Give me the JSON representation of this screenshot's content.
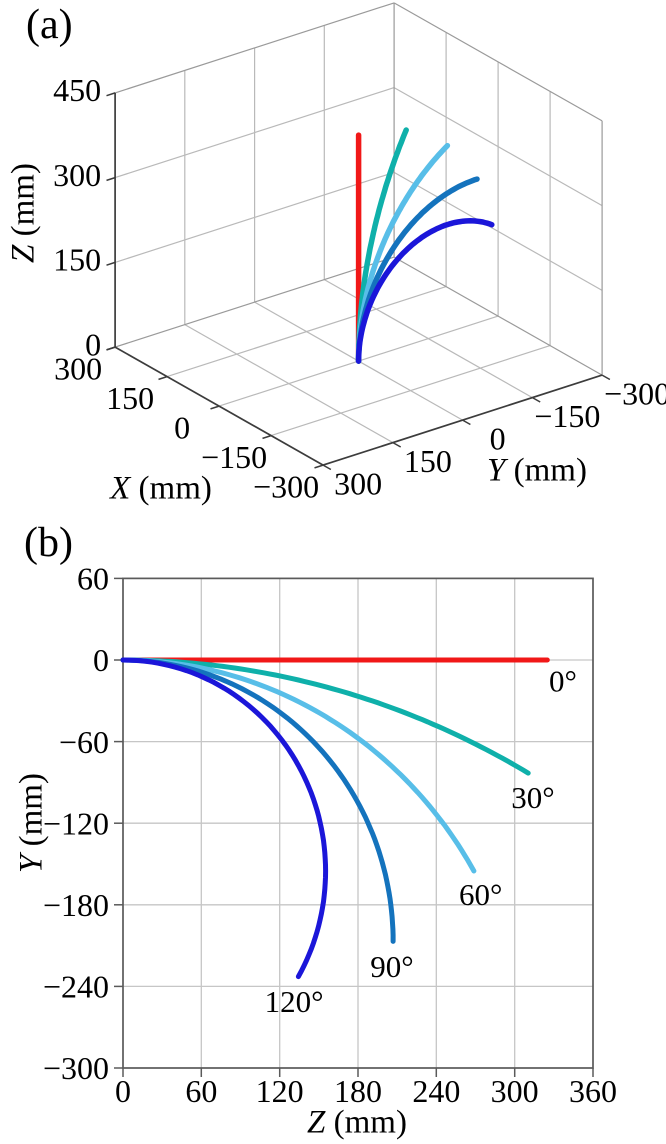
{
  "panel_a": {
    "label": "(a)"
  },
  "panel_b": {
    "label": "(b)"
  },
  "colors": {
    "grid3d": "#b9b9b9",
    "box3d": "#9a9a9a",
    "axis3d": "#3c3c3c",
    "grid2d": "#c6c6c6",
    "frame2d": "#5a5a5a",
    "text": "#000000"
  },
  "chart_data": [
    {
      "type": "line",
      "projection": "3d",
      "panel": "(a)",
      "title": "",
      "xlabel": {
        "var": "X",
        "unit": " (mm)"
      },
      "ylabel": {
        "var": "Y",
        "unit": " (mm)"
      },
      "zlabel": {
        "var": "Z",
        "unit": " (mm)"
      },
      "xlim": [
        300,
        -300
      ],
      "ylim": [
        300,
        -300
      ],
      "zlim": [
        0,
        450
      ],
      "xticks": [
        300,
        150,
        0,
        -150,
        -300
      ],
      "yticks": [
        300,
        150,
        0,
        -150,
        -300
      ],
      "zticks": [
        0,
        150,
        300,
        450
      ],
      "grid": true,
      "arc_length_mm": 400,
      "bend_plane": "curves lie in X=0 plane, bending from +Z toward -Y",
      "series": [
        {
          "name": "0°",
          "bend_deg": 0,
          "color": "#f11818",
          "end_point_xyz": [
            0,
            0,
            400
          ]
        },
        {
          "name": "30°",
          "bend_deg": 30,
          "color": "#0fb0aa",
          "end_point_xyz": [
            0,
            -102,
            382
          ]
        },
        {
          "name": "60°",
          "bend_deg": 60,
          "color": "#58bee8",
          "end_point_xyz": [
            0,
            -191,
            331
          ]
        },
        {
          "name": "90°",
          "bend_deg": 90,
          "color": "#1473bd",
          "end_point_xyz": [
            0,
            -255,
            255
          ]
        },
        {
          "name": "120°",
          "bend_deg": 120,
          "color": "#1b16d9",
          "end_point_xyz": [
            0,
            -286,
            165
          ]
        }
      ]
    },
    {
      "type": "line",
      "projection": "2d",
      "panel": "(b)",
      "title": "",
      "xlabel": {
        "var": "Z",
        "unit": " (mm)"
      },
      "ylabel": {
        "var": "Y",
        "unit": " (mm)"
      },
      "xlim": [
        0,
        360
      ],
      "ylim": [
        -300,
        60
      ],
      "xticks": [
        0,
        60,
        120,
        180,
        240,
        300,
        360
      ],
      "yticks": [
        60,
        0,
        -60,
        -120,
        -180,
        -240,
        -300
      ],
      "grid": true,
      "arc_length_mm": 325,
      "series": [
        {
          "name": "0°",
          "bend_deg": 0,
          "color": "#f11818",
          "end_point_zy": [
            325,
            0
          ],
          "label_pos_zy": [
            337,
            -15
          ]
        },
        {
          "name": "30°",
          "bend_deg": 30,
          "color": "#0fb0aa",
          "end_point_zy": [
            310,
            -83
          ],
          "label_pos_zy": [
            314,
            -101
          ]
        },
        {
          "name": "60°",
          "bend_deg": 60,
          "color": "#58bee8",
          "end_point_zy": [
            269,
            -155
          ],
          "label_pos_zy": [
            274,
            -172
          ]
        },
        {
          "name": "90°",
          "bend_deg": 90,
          "color": "#1473bd",
          "end_point_zy": [
            207,
            -207
          ],
          "label_pos_zy": [
            206,
            -225
          ]
        },
        {
          "name": "120°",
          "bend_deg": 120,
          "color": "#1b16d9",
          "end_point_zy": [
            134,
            -233
          ],
          "label_pos_zy": [
            131,
            -251
          ]
        }
      ]
    }
  ]
}
